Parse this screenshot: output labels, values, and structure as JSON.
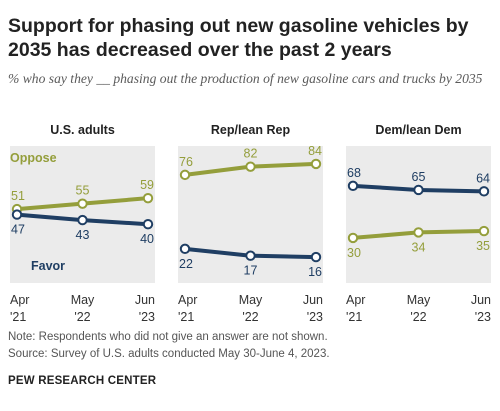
{
  "title": "Support for phasing out new gasoline vehicles by 2035 has decreased over the past 2 years",
  "subtitle": "% who say they __ phasing out the production of new gasoline cars and trucks by 2035",
  "note": "Note: Respondents who did not give an answer are not shown.",
  "source": "Source: Survey of U.S. adults conducted May 30-June 4, 2023.",
  "brand": "PEW RESEARCH CENTER",
  "colors": {
    "oppose": "#949e3b",
    "favor": "#1f3e63",
    "panel_bg": "#ebebeb"
  },
  "chart_data": [
    {
      "type": "line",
      "title": "U.S. adults",
      "x": [
        "Apr '21",
        "May '22",
        "Jun '23"
      ],
      "x_ticks": [
        [
          "Apr",
          "'21"
        ],
        [
          "May",
          "'22"
        ],
        [
          "Jun",
          "'23"
        ]
      ],
      "ylim": [
        0,
        100
      ],
      "grid": false,
      "legend": "series labels inline (Oppose above, Favor below)",
      "series": [
        {
          "name": "Oppose",
          "key": "oppose",
          "values": [
            51,
            55,
            59
          ]
        },
        {
          "name": "Favor",
          "key": "favor",
          "values": [
            47,
            43,
            40
          ]
        }
      ]
    },
    {
      "type": "line",
      "title": "Rep/lean Rep",
      "x": [
        "Apr '21",
        "May '22",
        "Jun '23"
      ],
      "x_ticks": [
        [
          "Apr",
          "'21"
        ],
        [
          "May",
          "'22"
        ],
        [
          "Jun",
          "'23"
        ]
      ],
      "ylim": [
        0,
        100
      ],
      "grid": false,
      "series": [
        {
          "key": "oppose",
          "values": [
            76,
            82,
            84
          ]
        },
        {
          "key": "favor",
          "values": [
            22,
            17,
            16
          ]
        }
      ]
    },
    {
      "type": "line",
      "title": "Dem/lean Dem",
      "x": [
        "Apr '21",
        "May '22",
        "Jun '23"
      ],
      "x_ticks": [
        [
          "Apr",
          "'21"
        ],
        [
          "May",
          "'22"
        ],
        [
          "Jun",
          "'23"
        ]
      ],
      "ylim": [
        0,
        100
      ],
      "grid": false,
      "series": [
        {
          "key": "favor",
          "values": [
            68,
            65,
            64
          ]
        },
        {
          "key": "oppose",
          "values": [
            30,
            34,
            35
          ]
        }
      ]
    }
  ]
}
